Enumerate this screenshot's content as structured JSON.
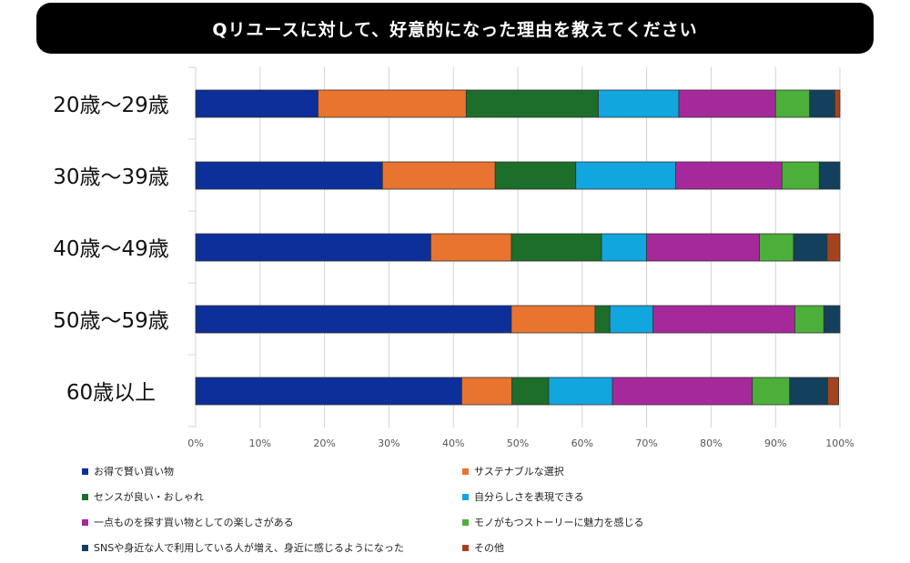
{
  "chart_data": {
    "type": "bar",
    "orientation": "horizontal",
    "stacked": true,
    "percent": true,
    "title": "Qリユースに対して、好意的になった理由を教えてください",
    "categories": [
      "20歳～29歳",
      "30歳～39歳",
      "40歳～49歳",
      "50歳～59歳",
      "60歳以上"
    ],
    "series": [
      {
        "name": "お得で賢い買い物",
        "color": "#0C2F99",
        "values": [
          19,
          29,
          36.5,
          49,
          41.3
        ]
      },
      {
        "name": "サステナブルな選択",
        "color": "#E8742F",
        "values": [
          23,
          17.5,
          12.5,
          13,
          7.8
        ]
      },
      {
        "name": "センスが良い・おしゃれ",
        "color": "#1C6E2A",
        "values": [
          20.5,
          12.5,
          14,
          2.3,
          5.7
        ]
      },
      {
        "name": "自分らしさを表現できる",
        "color": "#12A6DE",
        "values": [
          12.5,
          15.5,
          7,
          6.7,
          9.9
        ]
      },
      {
        "name": "一点ものを探す買い物としての楽しさがある",
        "color": "#A6299C",
        "values": [
          15,
          16.5,
          17.5,
          22,
          21.7
        ]
      },
      {
        "name": "モノがもつストーリーに魅力を感じる",
        "color": "#4CAF3A",
        "values": [
          5.3,
          5.8,
          5.3,
          4.5,
          5.8
        ]
      },
      {
        "name": "SNSや身近な人で利用している人が増え、身近に感じるようになった",
        "color": "#13405C",
        "values": [
          3.9,
          3.2,
          5.2,
          2.5,
          5.9
        ]
      },
      {
        "name": "その他",
        "color": "#A4441E",
        "values": [
          0.8,
          0,
          2,
          0,
          1.7
        ]
      }
    ],
    "xticks": [
      "0%",
      "10%",
      "20%",
      "30%",
      "40%",
      "50%",
      "60%",
      "70%",
      "80%",
      "90%",
      "100%"
    ],
    "xlim": [
      0,
      100
    ],
    "grid": true,
    "legend_position": "bottom"
  }
}
